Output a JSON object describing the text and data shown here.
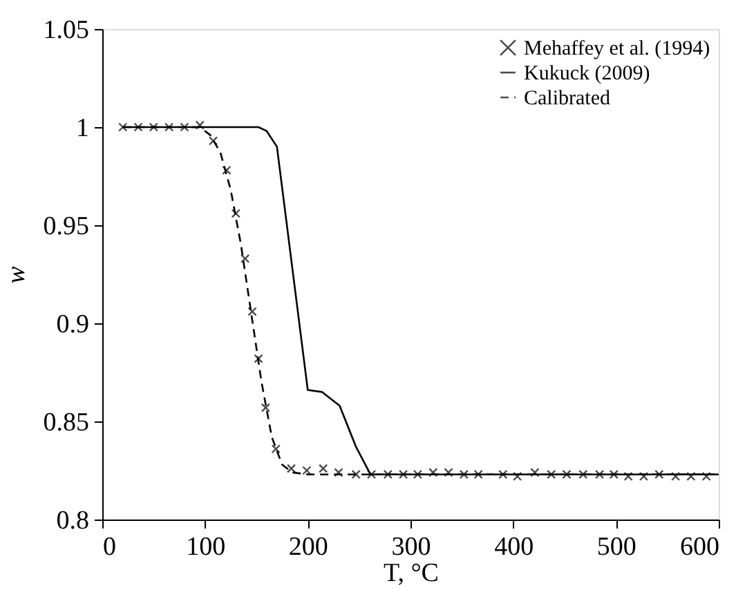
{
  "chart_data": {
    "type": "line",
    "xlabel": "T, °C",
    "ylabel": "w",
    "xlim": [
      0,
      600
    ],
    "xticks": [
      0,
      100,
      200,
      300,
      400,
      500,
      600
    ],
    "ylim": [
      0.8,
      1.05
    ],
    "yticks": [
      0.8,
      0.85,
      0.9,
      0.95,
      1,
      1.05
    ],
    "grid": false,
    "legend": "top right",
    "series": [
      {
        "name": "Mehaffey et al. (1994)",
        "type": "scatter",
        "marker": "cross",
        "color": "#000000",
        "x": [
          20,
          35,
          50,
          65,
          80,
          95,
          108,
          121,
          130,
          139,
          146,
          152,
          159,
          169,
          184,
          199,
          215,
          230,
          247,
          262,
          278,
          293,
          307,
          322,
          337,
          352,
          366,
          390,
          404,
          421,
          437,
          452,
          468,
          484,
          498,
          512,
          527,
          542,
          558,
          573,
          588
        ],
        "values": [
          1.0,
          1.0,
          1.0,
          1.0,
          1.0,
          1.001,
          0.993,
          0.978,
          0.956,
          0.933,
          0.906,
          0.882,
          0.857,
          0.836,
          0.826,
          0.825,
          0.826,
          0.824,
          0.823,
          0.823,
          0.823,
          0.823,
          0.823,
          0.824,
          0.824,
          0.823,
          0.823,
          0.823,
          0.822,
          0.824,
          0.823,
          0.823,
          0.823,
          0.823,
          0.823,
          0.822,
          0.822,
          0.823,
          0.822,
          0.822,
          0.822
        ]
      },
      {
        "name": "Kukuck (2009)",
        "type": "line",
        "line_style": "solid",
        "color": "#000000",
        "x": [
          20,
          152,
          160,
          170,
          200,
          214,
          231,
          247,
          261,
          600
        ],
        "values": [
          1.0,
          1.0,
          0.998,
          0.99,
          0.866,
          0.865,
          0.858,
          0.837,
          0.823,
          0.823
        ]
      },
      {
        "name": "Calibrated",
        "type": "line",
        "line_style": "dashed",
        "color": "#000000",
        "x": [
          20,
          95,
          105,
          115,
          125,
          135,
          145,
          155,
          165,
          175,
          185,
          200,
          600
        ],
        "values": [
          1.0,
          1.0,
          0.996,
          0.987,
          0.968,
          0.94,
          0.905,
          0.87,
          0.842,
          0.828,
          0.824,
          0.823,
          0.823
        ]
      }
    ]
  }
}
